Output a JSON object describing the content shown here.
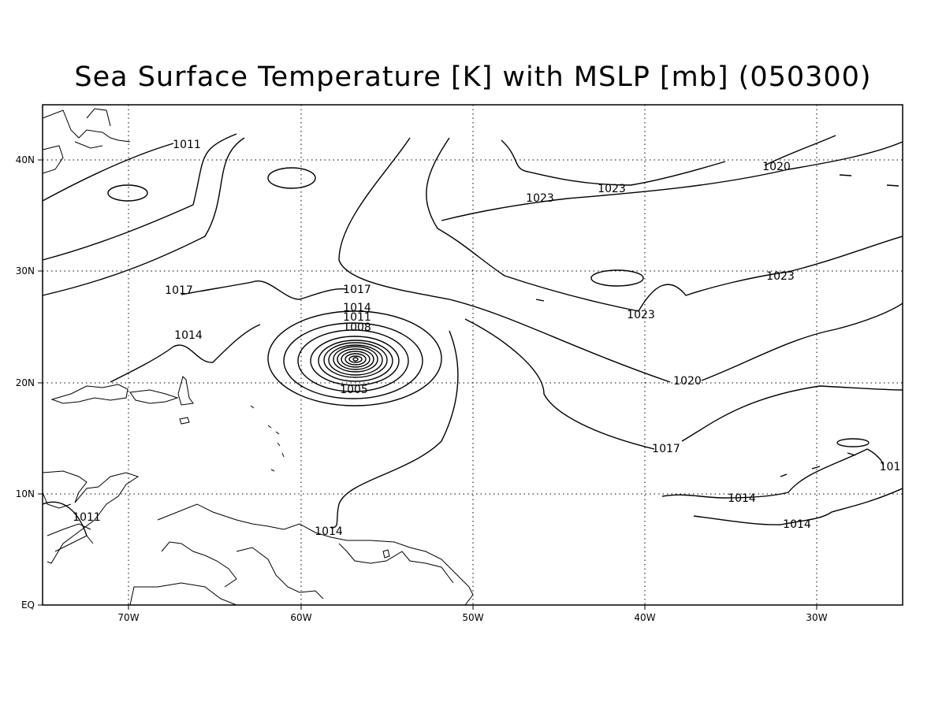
{
  "title": "Sea Surface Temperature [K] with MSLP [mb] (050300)",
  "axes": {
    "x_ticks": [
      "70W",
      "60W",
      "50W",
      "40W",
      "30W"
    ],
    "y_ticks": [
      "EQ",
      "10N",
      "20N",
      "30N",
      "40N"
    ]
  },
  "contour_labels": {
    "nw_1011": "1011",
    "carib_1011": "1011",
    "west_1017": "1017",
    "west_1014": "1014",
    "ring_1017": "1017",
    "ring_1014": "1014",
    "ring_1011": "1011",
    "ring_1008": "1008",
    "ring_1005": "1005",
    "north_1023": "1023",
    "north_1023b": "1023",
    "ne_1020": "1020",
    "east_1023": "1023",
    "mid_1023": "1023",
    "east_1020": "1020",
    "east_1017": "1017",
    "east_101": "101",
    "se_1014": "1014",
    "se_1014b": "1014",
    "south_1014": "1014"
  },
  "colors": {
    "line": "#000000",
    "background": "#ffffff"
  }
}
